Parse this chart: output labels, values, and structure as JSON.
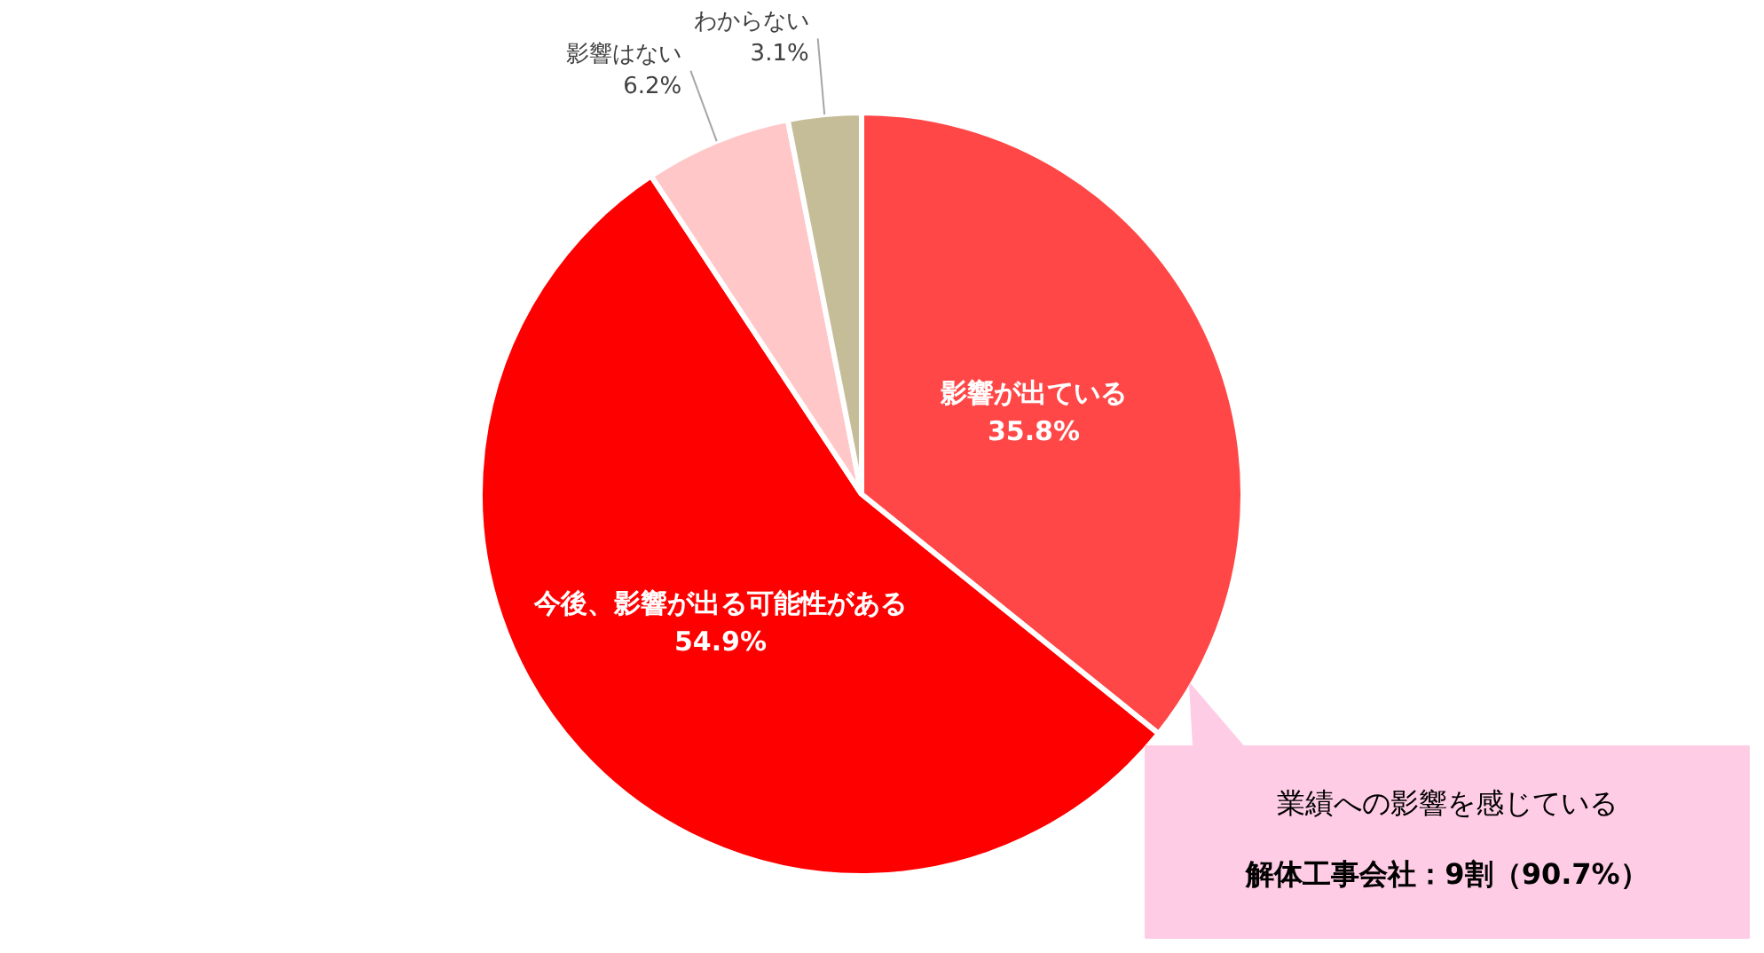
{
  "chart_data": {
    "type": "pie",
    "categories": [
      "影響が出ている",
      "今後、影響が出る可能性がある",
      "影響はない",
      "わからない"
    ],
    "values": [
      35.8,
      54.9,
      6.2,
      3.1
    ],
    "colors": [
      "#ff4747",
      "#ff0000",
      "#ffc7c7",
      "#c4bd97"
    ],
    "value_labels": [
      "35.8%",
      "54.9%",
      "6.2%",
      "3.1%"
    ],
    "annotations": [
      "業績への影響を感じている",
      "解体工事会社：9割（90.7%）"
    ]
  }
}
